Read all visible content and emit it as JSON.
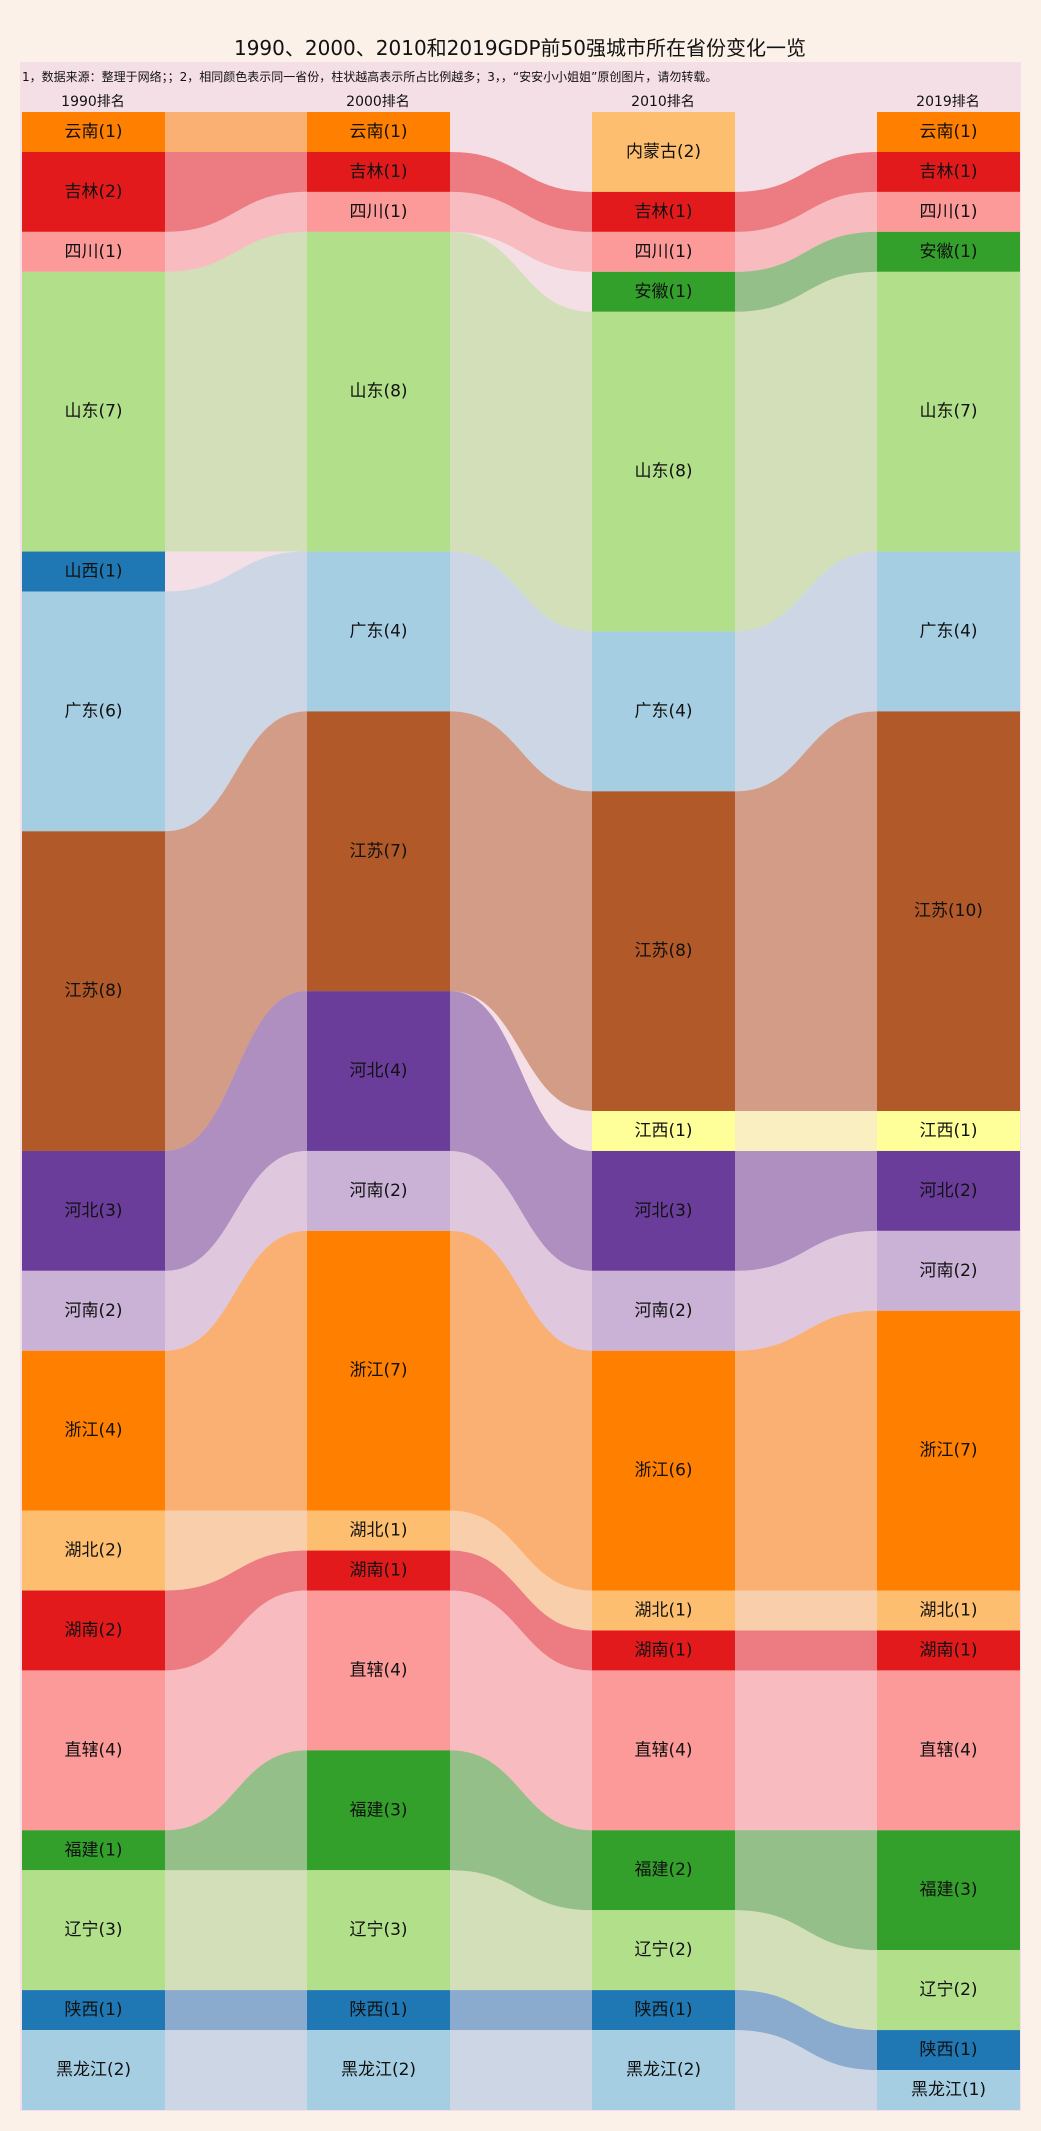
{
  "chart_data": {
    "type": "sankey",
    "title": "1990、2000、2010和2019GDP前50强城市所在省份变化一览",
    "note": "1，数据来源：整理于网络；；2，相同颜色表示同一省份，柱状越高表示所占比例越多；3，，“安安小小姐姐”原创图片，请勿转载。",
    "columns": [
      "1990排名",
      "2000排名",
      "2010排名",
      "2019排名"
    ],
    "province_colors": {
      "云南": "#ff7f00",
      "吉林": "#e31a1c",
      "四川": "#fb9a99",
      "山东": "#b2df8a",
      "山西": "#1f78b4",
      "广东": "#a6cee3",
      "江苏": "#b15928",
      "河北": "#6a3d9a",
      "河南": "#cab2d6",
      "浙江": "#ff7f00",
      "湖北": "#fdbf6f",
      "湖南": "#e31a1c",
      "直辖": "#fb9a99",
      "福建": "#33a02c",
      "辽宁": "#b2df8a",
      "陕西": "#1f78b4",
      "黑龙江": "#a6cee3",
      "内蒙古": "#fdbf6f",
      "安徽": "#33a02c",
      "江西": "#ffff99"
    },
    "nodes": [
      [
        {
          "name": "云南",
          "label": "云南(1)",
          "value": 1
        },
        {
          "name": "吉林",
          "label": "吉林(2)",
          "value": 2
        },
        {
          "name": "四川",
          "label": "四川(1)",
          "value": 1
        },
        {
          "name": "山东",
          "label": "山东(7)",
          "value": 7
        },
        {
          "name": "山西",
          "label": "山西(1)",
          "value": 1
        },
        {
          "name": "广东",
          "label": "广东(6)",
          "value": 6
        },
        {
          "name": "江苏",
          "label": "江苏(8)",
          "value": 8
        },
        {
          "name": "河北",
          "label": "河北(3)",
          "value": 3
        },
        {
          "name": "河南",
          "label": "河南(2)",
          "value": 2
        },
        {
          "name": "浙江",
          "label": "浙江(4)",
          "value": 4
        },
        {
          "name": "湖北",
          "label": "湖北(2)",
          "value": 2
        },
        {
          "name": "湖南",
          "label": "湖南(2)",
          "value": 2
        },
        {
          "name": "直辖",
          "label": "直辖(4)",
          "value": 4
        },
        {
          "name": "福建",
          "label": "福建(1)",
          "value": 1
        },
        {
          "name": "辽宁",
          "label": "辽宁(3)",
          "value": 3
        },
        {
          "name": "陕西",
          "label": "陕西(1)",
          "value": 1
        },
        {
          "name": "黑龙江",
          "label": "黑龙江(2)",
          "value": 2
        }
      ],
      [
        {
          "name": "云南",
          "label": "云南(1)",
          "value": 1
        },
        {
          "name": "吉林",
          "label": "吉林(1)",
          "value": 1
        },
        {
          "name": "四川",
          "label": "四川(1)",
          "value": 1
        },
        {
          "name": "山东",
          "label": "山东(8)",
          "value": 8
        },
        {
          "name": "广东",
          "label": "广东(4)",
          "value": 4
        },
        {
          "name": "江苏",
          "label": "江苏(7)",
          "value": 7
        },
        {
          "name": "河北",
          "label": "河北(4)",
          "value": 4
        },
        {
          "name": "河南",
          "label": "河南(2)",
          "value": 2
        },
        {
          "name": "浙江",
          "label": "浙江(7)",
          "value": 7
        },
        {
          "name": "湖北",
          "label": "湖北(1)",
          "value": 1
        },
        {
          "name": "湖南",
          "label": "湖南(1)",
          "value": 1
        },
        {
          "name": "直辖",
          "label": "直辖(4)",
          "value": 4
        },
        {
          "name": "福建",
          "label": "福建(3)",
          "value": 3
        },
        {
          "name": "辽宁",
          "label": "辽宁(3)",
          "value": 3
        },
        {
          "name": "陕西",
          "label": "陕西(1)",
          "value": 1
        },
        {
          "name": "黑龙江",
          "label": "黑龙江(2)",
          "value": 2
        }
      ],
      [
        {
          "name": "内蒙古",
          "label": "内蒙古(2)",
          "value": 2
        },
        {
          "name": "吉林",
          "label": "吉林(1)",
          "value": 1
        },
        {
          "name": "四川",
          "label": "四川(1)",
          "value": 1
        },
        {
          "name": "安徽",
          "label": "安徽(1)",
          "value": 1
        },
        {
          "name": "山东",
          "label": "山东(8)",
          "value": 8
        },
        {
          "name": "广东",
          "label": "广东(4)",
          "value": 4
        },
        {
          "name": "江苏",
          "label": "江苏(8)",
          "value": 8
        },
        {
          "name": "江西",
          "label": "江西(1)",
          "value": 1
        },
        {
          "name": "河北",
          "label": "河北(3)",
          "value": 3
        },
        {
          "name": "河南",
          "label": "河南(2)",
          "value": 2
        },
        {
          "name": "浙江",
          "label": "浙江(6)",
          "value": 6
        },
        {
          "name": "湖北",
          "label": "湖北(1)",
          "value": 1
        },
        {
          "name": "湖南",
          "label": "湖南(1)",
          "value": 1
        },
        {
          "name": "直辖",
          "label": "直辖(4)",
          "value": 4
        },
        {
          "name": "福建",
          "label": "福建(2)",
          "value": 2
        },
        {
          "name": "辽宁",
          "label": "辽宁(2)",
          "value": 2
        },
        {
          "name": "陕西",
          "label": "陕西(1)",
          "value": 1
        },
        {
          "name": "黑龙江",
          "label": "黑龙江(2)",
          "value": 2
        }
      ],
      [
        {
          "name": "云南",
          "label": "云南(1)",
          "value": 1
        },
        {
          "name": "吉林",
          "label": "吉林(1)",
          "value": 1
        },
        {
          "name": "四川",
          "label": "四川(1)",
          "value": 1
        },
        {
          "name": "安徽",
          "label": "安徽(1)",
          "value": 1
        },
        {
          "name": "山东",
          "label": "山东(7)",
          "value": 7
        },
        {
          "name": "广东",
          "label": "广东(4)",
          "value": 4
        },
        {
          "name": "江苏",
          "label": "江苏(10)",
          "value": 10
        },
        {
          "name": "江西",
          "label": "江西(1)",
          "value": 1
        },
        {
          "name": "河北",
          "label": "河北(2)",
          "value": 2
        },
        {
          "name": "河南",
          "label": "河南(2)",
          "value": 2
        },
        {
          "name": "浙江",
          "label": "浙江(7)",
          "value": 7
        },
        {
          "name": "湖北",
          "label": "湖北(1)",
          "value": 1
        },
        {
          "name": "湖南",
          "label": "湖南(1)",
          "value": 1
        },
        {
          "name": "直辖",
          "label": "直辖(4)",
          "value": 4
        },
        {
          "name": "福建",
          "label": "福建(3)",
          "value": 3
        },
        {
          "name": "辽宁",
          "label": "辽宁(2)",
          "value": 2
        },
        {
          "name": "陕西",
          "label": "陕西(1)",
          "value": 1
        },
        {
          "name": "黑龙江",
          "label": "黑龙江(1)",
          "value": 1
        }
      ]
    ]
  }
}
